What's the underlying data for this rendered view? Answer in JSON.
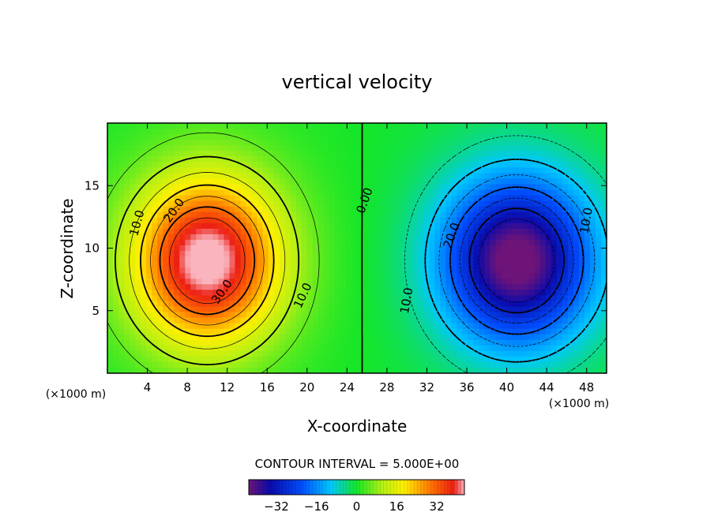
{
  "chart_data": {
    "type": "heatmap",
    "title": "vertical velocity",
    "xlabel": "X-coordinate",
    "ylabel": "Z-coordinate",
    "x_unit": "(×1000 m)",
    "z_unit": "(×1000 m)",
    "xlim": [
      0,
      50
    ],
    "ylim": [
      0,
      20
    ],
    "x_ticks": [
      4,
      8,
      12,
      16,
      20,
      24,
      28,
      32,
      36,
      40,
      44,
      48
    ],
    "y_ticks": [
      5,
      10,
      15
    ],
    "field": {
      "description_value": "vertical velocity field with an updraft cell centred near x=10, z=9 and a downdraft cell centred near x=41, z=9",
      "updraft": {
        "center": [
          10,
          9
        ],
        "peak": 38
      },
      "downdraft": {
        "center": [
          41,
          9
        ],
        "peak": -38
      }
    },
    "contour_labels": [
      {
        "text": "10.0",
        "x": 3.0,
        "z": 12.0,
        "angle": -75
      },
      {
        "text": "20.0",
        "x": 6.7,
        "z": 13.0,
        "angle": -55
      },
      {
        "text": "30.0",
        "x": 11.5,
        "z": 6.5,
        "angle": -55
      },
      {
        "text": "10.0",
        "x": 19.6,
        "z": 6.2,
        "angle": -65
      },
      {
        "text": "0.00",
        "x": 25.8,
        "z": 13.8,
        "angle": -70
      },
      {
        "text": "20.0",
        "x": 34.5,
        "z": 11.0,
        "angle": -70
      },
      {
        "text": "10.0",
        "x": 30.0,
        "z": 5.8,
        "angle": -80
      },
      {
        "text": "10.0",
        "x": 48.0,
        "z": 12.2,
        "angle": -80
      }
    ],
    "contour_interval_text": "CONTOUR INTERVAL = 5.000E+00",
    "colorbar": {
      "min": -43,
      "max": 43,
      "ticks": [
        -32,
        -16,
        0,
        16,
        32
      ],
      "tick_labels": [
        "−32",
        "−16",
        "0",
        "16",
        "32"
      ]
    }
  }
}
